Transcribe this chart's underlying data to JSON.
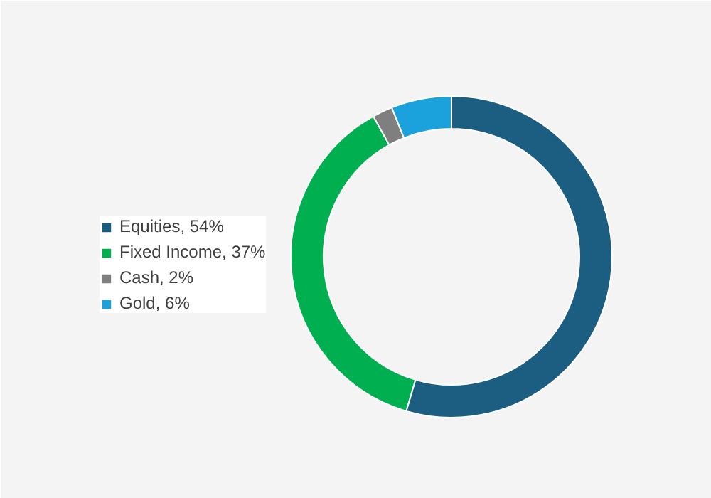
{
  "chart_data": {
    "type": "donut",
    "categories": [
      "Equities, 54%",
      "Fixed Income, 37%",
      "Cash, 2%",
      "Gold, 6%"
    ],
    "values": [
      54,
      37,
      2,
      6
    ],
    "colors": [
      "#1b5e82",
      "#00b050",
      "#7f7f7f",
      "#1ba1dc"
    ],
    "legend": "left"
  }
}
